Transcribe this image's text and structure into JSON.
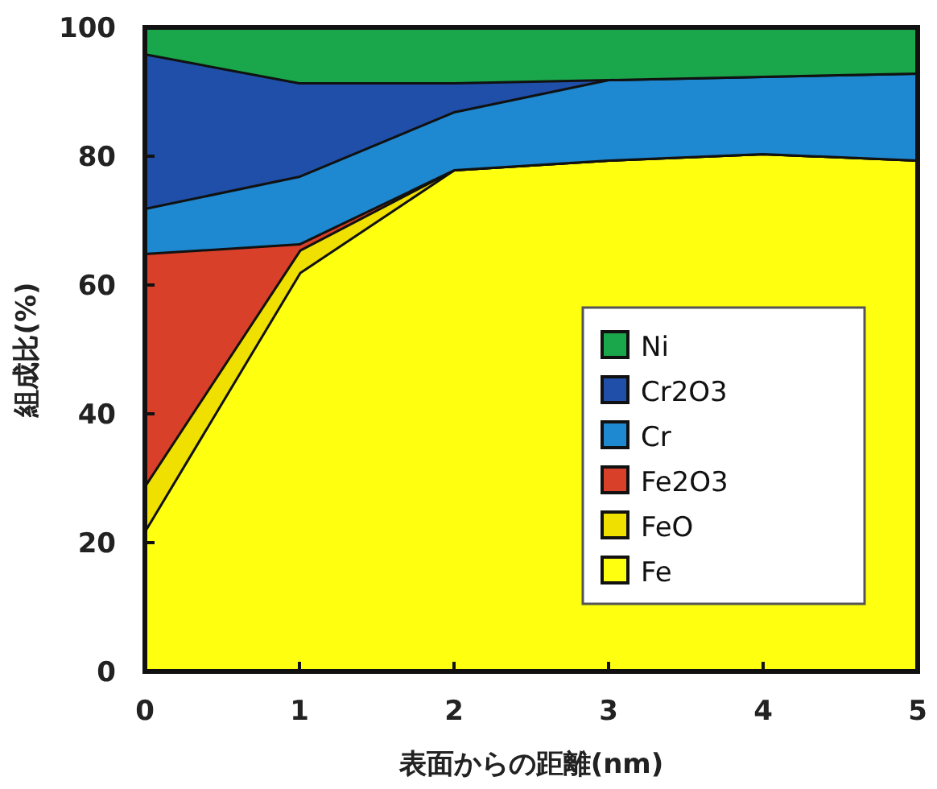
{
  "chart_data": {
    "type": "area",
    "stacked": true,
    "xlabel": "表面からの距離(nm)",
    "ylabel": "組成比(%)",
    "x": [
      0,
      1,
      2,
      3,
      4,
      5
    ],
    "xlim": [
      0,
      5
    ],
    "ylim": [
      0,
      100
    ],
    "xticks": [
      0,
      1,
      2,
      3,
      4,
      5
    ],
    "yticks": [
      0,
      20,
      40,
      60,
      80,
      100
    ],
    "legend": "bottom right",
    "series": [
      {
        "name": "Fe",
        "color": "#ffff10",
        "values": [
          22,
          62,
          78,
          79.5,
          80.5,
          79.5
        ]
      },
      {
        "name": "FeO",
        "color": "#f0e000",
        "values": [
          7,
          3.5,
          0,
          0,
          0,
          0
        ]
      },
      {
        "name": "Fe2O3",
        "color": "#d8402a",
        "values": [
          36,
          1,
          0,
          0,
          0,
          0
        ]
      },
      {
        "name": "Cr",
        "color": "#1e88d0",
        "values": [
          7,
          10.5,
          9,
          12.5,
          12,
          13.5
        ]
      },
      {
        "name": "Cr2O3",
        "color": "#1f4fa8",
        "values": [
          24,
          14.5,
          4.5,
          0,
          0,
          0
        ]
      },
      {
        "name": "Ni",
        "color": "#1aa64a",
        "values": [
          4,
          8.5,
          8.5,
          8,
          7.5,
          7
        ]
      }
    ]
  }
}
